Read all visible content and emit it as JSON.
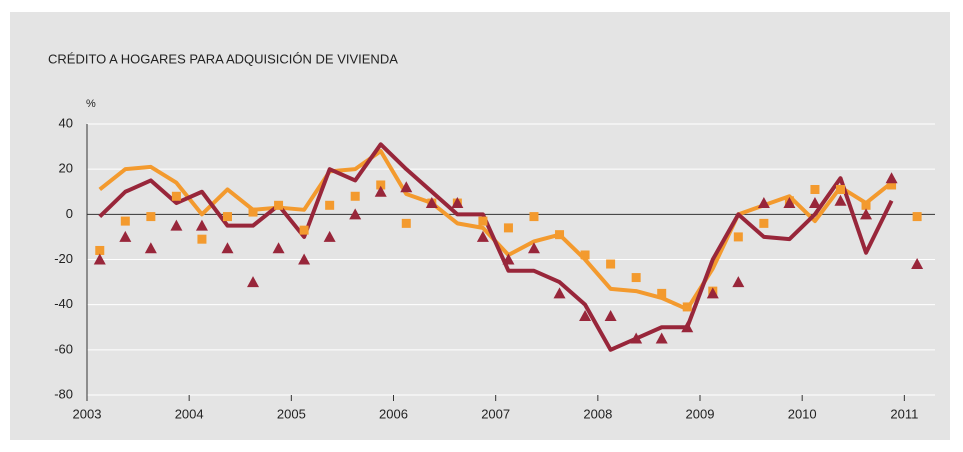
{
  "chart_data": {
    "type": "line",
    "title": "CRÉDITO A HOGARES PARA ADQUISICIÓN DE VIVIENDA",
    "y_unit": "%",
    "x": [
      2003.125,
      2003.375,
      2003.625,
      2003.875,
      2004.125,
      2004.375,
      2004.625,
      2004.875,
      2005.125,
      2005.375,
      2005.625,
      2005.875,
      2006.125,
      2006.375,
      2006.625,
      2006.875,
      2007.125,
      2007.375,
      2007.625,
      2007.875,
      2008.125,
      2008.375,
      2008.625,
      2008.875,
      2009.125,
      2009.375,
      2009.625,
      2009.875,
      2010.125,
      2010.375,
      2010.625,
      2010.875,
      2011.125
    ],
    "series": [
      {
        "mark": "line",
        "color": "#f39a2e",
        "values": [
          11,
          20,
          21,
          14,
          0,
          11,
          2,
          3,
          2,
          19,
          20,
          28,
          9,
          5,
          -4,
          -6,
          -18,
          -12,
          -9,
          -20,
          -33,
          -34,
          -37,
          -42,
          -24,
          0,
          4,
          8,
          -3,
          12,
          5,
          14,
          null
        ]
      },
      {
        "mark": "line",
        "color": "#98263a",
        "values": [
          -1,
          10,
          15,
          5,
          10,
          -5,
          -5,
          4,
          -10,
          20,
          15,
          31,
          20,
          10,
          0,
          0,
          -25,
          -25,
          -30,
          -40,
          -60,
          -55,
          -50,
          -50,
          -20,
          0,
          -10,
          -11,
          0,
          16,
          -17,
          6,
          null
        ]
      },
      {
        "mark": "square",
        "color": "#f39a2e",
        "values": [
          -16,
          -3,
          -1,
          8,
          -11,
          -1,
          1,
          4,
          -7,
          4,
          8,
          13,
          -4,
          5,
          5,
          -3,
          -6,
          -1,
          -9,
          -18,
          -22,
          -28,
          -35,
          -41,
          -34,
          -10,
          -4,
          6,
          11,
          11,
          4,
          13,
          -1
        ]
      },
      {
        "mark": "triangle",
        "color": "#98263a",
        "values": [
          -20,
          -10,
          -15,
          -5,
          -5,
          -15,
          -30,
          -15,
          -20,
          -10,
          0,
          10,
          12,
          5,
          5,
          -10,
          -20,
          -15,
          -35,
          -45,
          -45,
          -55,
          -55,
          -50,
          -35,
          -30,
          5,
          5,
          5,
          6,
          0,
          16,
          -22
        ]
      }
    ],
    "xlim": [
      2003,
      2011.3
    ],
    "xticks": [
      2003,
      2004,
      2005,
      2006,
      2007,
      2008,
      2009,
      2010,
      2011
    ],
    "ylim": [
      -80,
      40
    ],
    "yticks": [
      -80,
      -60,
      -40,
      -20,
      0,
      20,
      40
    ],
    "grid": true
  }
}
